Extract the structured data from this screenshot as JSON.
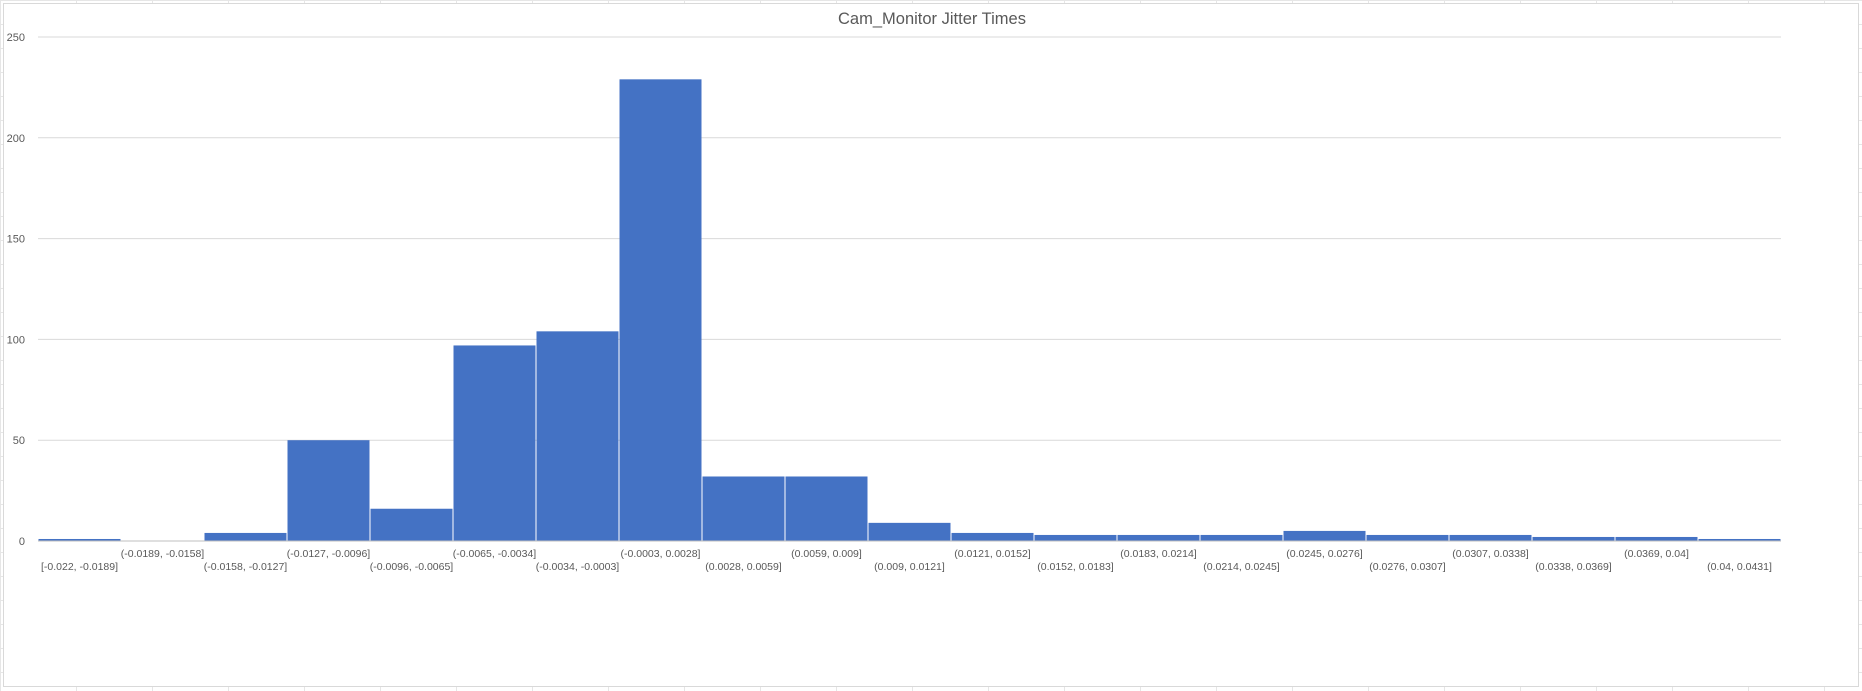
{
  "chart_data": {
    "type": "bar",
    "title": "Cam_Monitor Jitter Times",
    "xlabel": "",
    "ylabel": "",
    "ylim": [
      0,
      250
    ],
    "yticks": [
      0,
      50,
      100,
      150,
      200,
      250
    ],
    "grid": true,
    "legend": "none",
    "bar_color": "#4472C4",
    "categories": [
      "[-0.022, -0.0189]",
      "(-0.0189, -0.0158]",
      "(-0.0158, -0.0127]",
      "(-0.0127, -0.0096]",
      "(-0.0096, -0.0065]",
      "(-0.0065, -0.0034]",
      "(-0.0034, -0.0003]",
      "(-0.0003, 0.0028]",
      "(0.0028, 0.0059]",
      "(0.0059, 0.009]",
      "(0.009, 0.0121]",
      "(0.0121, 0.0152]",
      "(0.0152, 0.0183]",
      "(0.0183, 0.0214]",
      "(0.0214, 0.0245]",
      "(0.0245, 0.0276]",
      "(0.0276, 0.0307]",
      "(0.0307, 0.0338]",
      "(0.0338, 0.0369]",
      "(0.0369, 0.04]",
      "(0.04, 0.0431]"
    ],
    "values": [
      1,
      0,
      4,
      50,
      16,
      97,
      104,
      229,
      32,
      32,
      9,
      4,
      3,
      3,
      3,
      5,
      3,
      3,
      2,
      2,
      1
    ]
  }
}
